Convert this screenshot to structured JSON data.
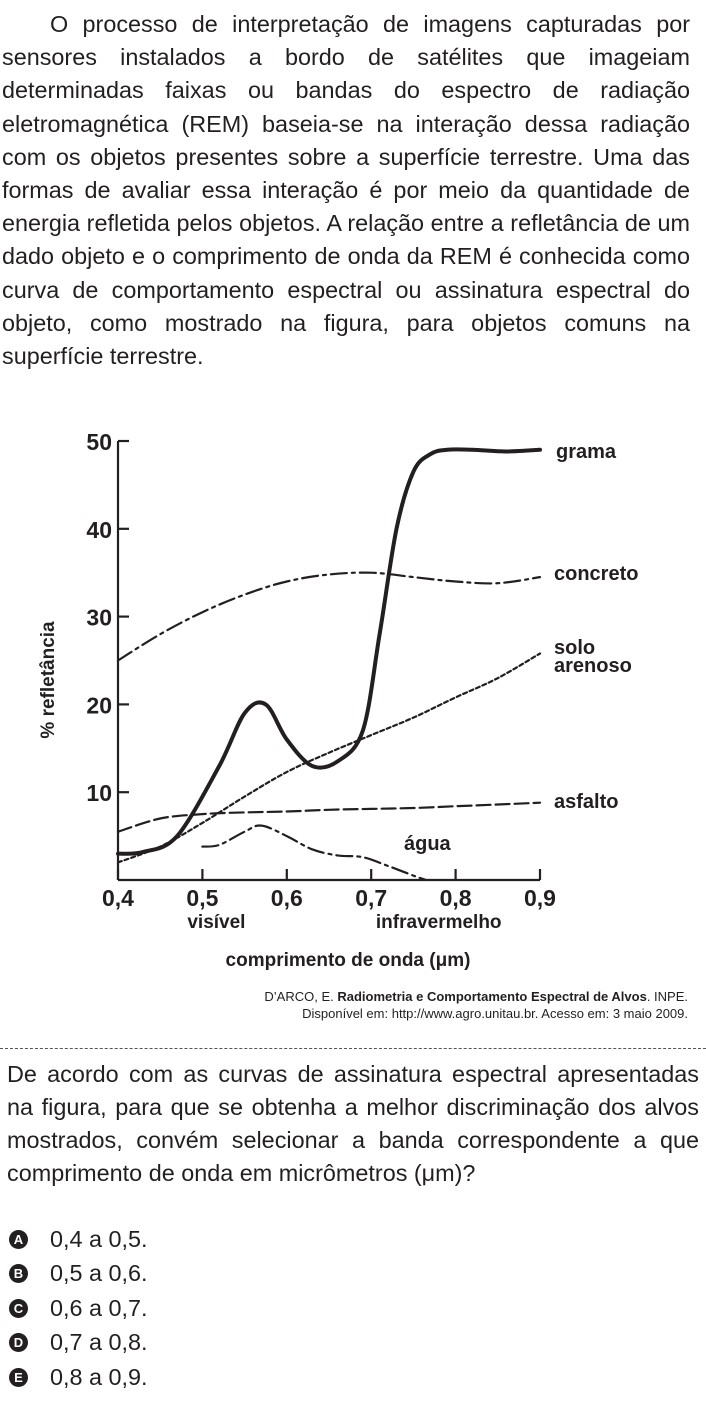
{
  "intro_text": "O processo de interpretação de imagens capturadas por sensores instalados a bordo de satélites que imageiam determinadas faixas ou bandas do espectro de radiação eletromagnética (REM) baseia-se na interação dessa radiação com os objetos presentes sobre a superfície terrestre. Uma das formas de avaliar essa interação é por meio da quantidade de energia refletida pelos objetos. A relação entre a refletância de um dado objeto e o comprimento de onda da REM é conhecida como curva de comportamento espectral ou assinatura espectral do objeto, como mostrado na figura, para objetos comuns na superfície terrestre.",
  "chart_data": {
    "type": "line",
    "xlabel": "comprimento de onda (μm)",
    "ylabel": "% refletância",
    "xlim": [
      0.4,
      0.9
    ],
    "ylim": [
      0,
      50
    ],
    "x_ticks": [
      "0,4",
      "0,5",
      "0,6",
      "0,7",
      "0,8",
      "0,9"
    ],
    "y_ticks": [
      "10",
      "20",
      "30",
      "40",
      "50"
    ],
    "x_region_labels": [
      "visível",
      "infravermelho"
    ],
    "series": [
      {
        "name": "grama",
        "style": "solid",
        "x": [
          0.4,
          0.43,
          0.47,
          0.52,
          0.55,
          0.575,
          0.6,
          0.63,
          0.66,
          0.69,
          0.71,
          0.73,
          0.75,
          0.77,
          0.79,
          0.82,
          0.86,
          0.9
        ],
        "y": [
          3.0,
          3.2,
          5.0,
          13.0,
          19.0,
          20.0,
          16.0,
          13.0,
          13.5,
          17.0,
          28.0,
          40.0,
          46.5,
          48.5,
          49.0,
          49.0,
          48.8,
          49.0
        ]
      },
      {
        "name": "concreto",
        "style": "dashdot",
        "x": [
          0.4,
          0.45,
          0.5,
          0.55,
          0.6,
          0.65,
          0.7,
          0.75,
          0.8,
          0.85,
          0.9
        ],
        "y": [
          25.0,
          28.0,
          30.5,
          32.5,
          34.0,
          34.8,
          35.0,
          34.5,
          34.0,
          33.8,
          34.5
        ]
      },
      {
        "name": "solo arenoso",
        "style": "dotted",
        "x": [
          0.4,
          0.45,
          0.5,
          0.55,
          0.6,
          0.65,
          0.7,
          0.75,
          0.8,
          0.85,
          0.9
        ],
        "y": [
          2.0,
          3.8,
          6.5,
          9.5,
          12.3,
          14.5,
          16.5,
          18.5,
          20.8,
          23.0,
          25.8
        ]
      },
      {
        "name": "asfalto",
        "style": "dashed",
        "x": [
          0.4,
          0.45,
          0.5,
          0.55,
          0.6,
          0.65,
          0.7,
          0.75,
          0.8,
          0.85,
          0.9
        ],
        "y": [
          5.5,
          7.0,
          7.5,
          7.7,
          7.8,
          8.0,
          8.1,
          8.2,
          8.4,
          8.6,
          8.8
        ]
      },
      {
        "name": "água",
        "style": "dashdot",
        "x": [
          0.5,
          0.52,
          0.55,
          0.57,
          0.6,
          0.63,
          0.66,
          0.69,
          0.72,
          0.75,
          0.765
        ],
        "y": [
          3.8,
          4.0,
          5.5,
          6.2,
          5.0,
          3.5,
          2.8,
          2.6,
          1.6,
          0.5,
          0.0
        ]
      }
    ]
  },
  "citation": {
    "author": "D’ARCO, E. ",
    "title": "Radiometria e Comportamento Espectral de Alvos",
    "publisher": ". INPE.",
    "availability": "Disponível em: http://www.agro.unitau.br. Acesso em: 3 maio 2009."
  },
  "question_text": "De acordo com as curvas de assinatura espectral apresentadas na figura, para que se obtenha a melhor discriminação dos alvos mostrados, convém selecionar a banda correspondente a que comprimento de onda em micrômetros (μm)?",
  "options": [
    {
      "letter": "A",
      "text": "0,4 a 0,5."
    },
    {
      "letter": "B",
      "text": "0,5 a 0,6."
    },
    {
      "letter": "C",
      "text": "0,6 a 0,7."
    },
    {
      "letter": "D",
      "text": "0,7 a 0,8."
    },
    {
      "letter": "E",
      "text": "0,8 a 0,9."
    }
  ]
}
